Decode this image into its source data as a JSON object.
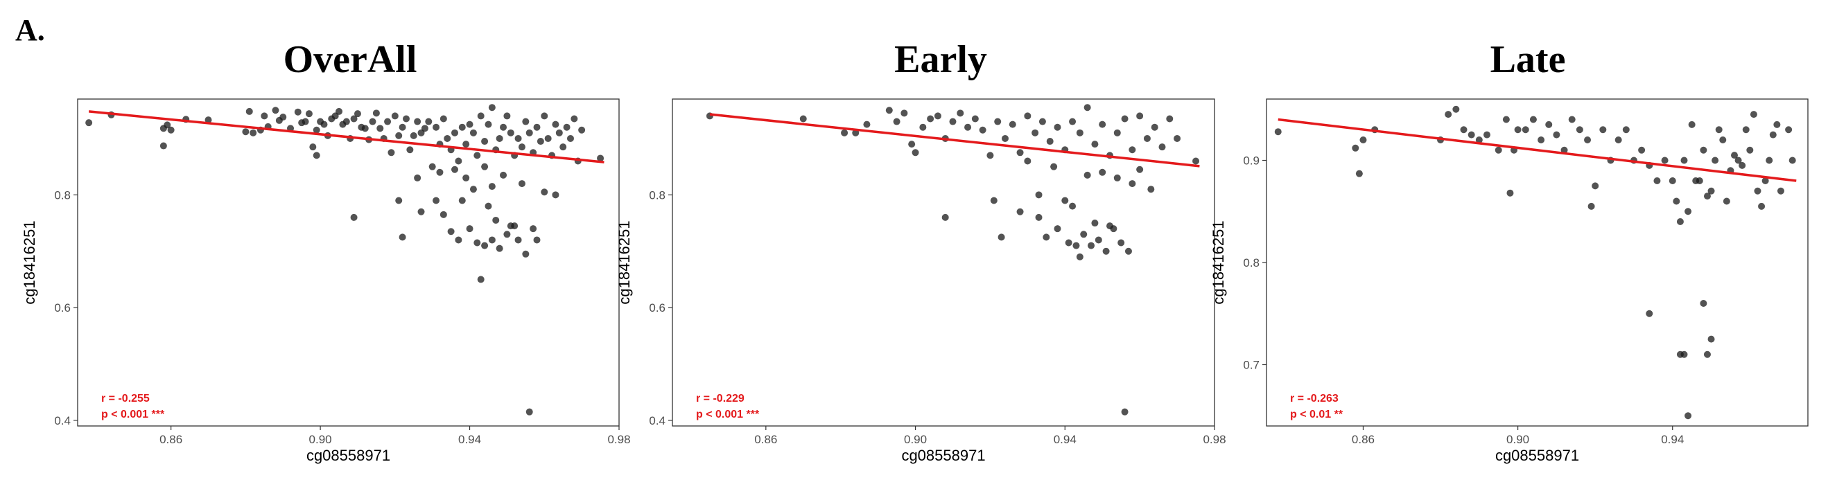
{
  "figure_label": "A.",
  "chart_data": [
    {
      "type": "scatter",
      "title": "OverAll",
      "xlabel": "cg08558971",
      "ylabel": "cg18416251",
      "xlim": [
        0.835,
        0.98
      ],
      "ylim": [
        0.39,
        0.97
      ],
      "xticks": [
        0.86,
        0.9,
        0.94,
        0.98
      ],
      "xtick_labels": [
        "0.86",
        "0.90",
        "0.94",
        "0.98"
      ],
      "yticks": [
        0.4,
        0.6,
        0.8
      ],
      "ytick_labels": [
        "0.4",
        "0.6",
        "0.8"
      ],
      "grid": false,
      "stat_r": "r = -0.255",
      "stat_p": "p < 0.001 ***",
      "fit_line": {
        "x": [
          0.838,
          0.976
        ],
        "y": [
          0.948,
          0.858
        ],
        "color": "#e41a1c"
      },
      "point_color": "#1a1a1a",
      "x": [
        0.838,
        0.844,
        0.858,
        0.858,
        0.859,
        0.86,
        0.864,
        0.87,
        0.88,
        0.881,
        0.882,
        0.884,
        0.885,
        0.886,
        0.888,
        0.889,
        0.89,
        0.892,
        0.894,
        0.895,
        0.896,
        0.897,
        0.898,
        0.899,
        0.899,
        0.9,
        0.901,
        0.902,
        0.903,
        0.904,
        0.905,
        0.906,
        0.907,
        0.908,
        0.909,
        0.91,
        0.911,
        0.912,
        0.913,
        0.914,
        0.915,
        0.916,
        0.917,
        0.918,
        0.919,
        0.92,
        0.921,
        0.922,
        0.923,
        0.924,
        0.925,
        0.926,
        0.927,
        0.928,
        0.929,
        0.93,
        0.931,
        0.932,
        0.933,
        0.934,
        0.935,
        0.936,
        0.937,
        0.938,
        0.939,
        0.94,
        0.941,
        0.942,
        0.943,
        0.944,
        0.945,
        0.946,
        0.947,
        0.948,
        0.949,
        0.95,
        0.951,
        0.952,
        0.953,
        0.954,
        0.955,
        0.956,
        0.957,
        0.958,
        0.959,
        0.96,
        0.961,
        0.962,
        0.963,
        0.964,
        0.965,
        0.966,
        0.967,
        0.968,
        0.969,
        0.97,
        0.975,
        0.909,
        0.921,
        0.922,
        0.927,
        0.933,
        0.935,
        0.937,
        0.94,
        0.942,
        0.944,
        0.946,
        0.948,
        0.95,
        0.953,
        0.955,
        0.957,
        0.943,
        0.956,
        0.945,
        0.931,
        0.938,
        0.952,
        0.963,
        0.941,
        0.947,
        0.951,
        0.958,
        0.944,
        0.949,
        0.954,
        0.96,
        0.939,
        0.946,
        0.932,
        0.936,
        0.926
      ],
      "y": [
        0.928,
        0.942,
        0.887,
        0.918,
        0.924,
        0.915,
        0.934,
        0.933,
        0.912,
        0.948,
        0.91,
        0.915,
        0.94,
        0.921,
        0.95,
        0.932,
        0.938,
        0.918,
        0.947,
        0.928,
        0.93,
        0.944,
        0.885,
        0.87,
        0.915,
        0.93,
        0.925,
        0.905,
        0.935,
        0.94,
        0.948,
        0.925,
        0.93,
        0.9,
        0.935,
        0.944,
        0.92,
        0.918,
        0.898,
        0.93,
        0.945,
        0.918,
        0.9,
        0.93,
        0.875,
        0.94,
        0.905,
        0.92,
        0.935,
        0.88,
        0.905,
        0.93,
        0.91,
        0.918,
        0.93,
        0.85,
        0.92,
        0.89,
        0.935,
        0.9,
        0.88,
        0.91,
        0.86,
        0.92,
        0.89,
        0.925,
        0.91,
        0.87,
        0.94,
        0.895,
        0.925,
        0.955,
        0.88,
        0.9,
        0.92,
        0.94,
        0.91,
        0.87,
        0.9,
        0.885,
        0.93,
        0.91,
        0.875,
        0.92,
        0.895,
        0.94,
        0.9,
        0.87,
        0.925,
        0.91,
        0.885,
        0.92,
        0.9,
        0.935,
        0.86,
        0.915,
        0.865,
        0.76,
        0.79,
        0.725,
        0.77,
        0.765,
        0.735,
        0.72,
        0.74,
        0.715,
        0.71,
        0.72,
        0.705,
        0.73,
        0.72,
        0.695,
        0.74,
        0.65,
        0.415,
        0.78,
        0.79,
        0.79,
        0.745,
        0.8,
        0.81,
        0.755,
        0.745,
        0.72,
        0.85,
        0.835,
        0.82,
        0.805,
        0.83,
        0.815,
        0.84,
        0.845,
        0.83
      ]
    },
    {
      "type": "scatter",
      "title": "Early",
      "xlabel": "cg08558971",
      "ylabel": "cg18416251",
      "xlim": [
        0.835,
        0.98
      ],
      "ylim": [
        0.39,
        0.97
      ],
      "xticks": [
        0.86,
        0.9,
        0.94,
        0.98
      ],
      "xtick_labels": [
        "0.86",
        "0.90",
        "0.94",
        "0.98"
      ],
      "yticks": [
        0.4,
        0.6,
        0.8
      ],
      "ytick_labels": [
        "0.4",
        "0.6",
        "0.8"
      ],
      "grid": false,
      "stat_r": "r = -0.229",
      "stat_p": "p < 0.001 ***",
      "fit_line": {
        "x": [
          0.845,
          0.976
        ],
        "y": [
          0.943,
          0.851
        ],
        "color": "#e41a1c"
      },
      "point_color": "#1a1a1a",
      "x": [
        0.845,
        0.87,
        0.881,
        0.884,
        0.887,
        0.893,
        0.895,
        0.897,
        0.899,
        0.9,
        0.902,
        0.904,
        0.906,
        0.908,
        0.91,
        0.912,
        0.914,
        0.916,
        0.918,
        0.92,
        0.922,
        0.924,
        0.926,
        0.928,
        0.93,
        0.932,
        0.934,
        0.936,
        0.938,
        0.94,
        0.942,
        0.944,
        0.946,
        0.948,
        0.95,
        0.952,
        0.954,
        0.956,
        0.958,
        0.96,
        0.962,
        0.964,
        0.966,
        0.968,
        0.97,
        0.975,
        0.908,
        0.921,
        0.923,
        0.928,
        0.933,
        0.935,
        0.938,
        0.941,
        0.943,
        0.945,
        0.947,
        0.949,
        0.951,
        0.953,
        0.955,
        0.957,
        0.944,
        0.956,
        0.948,
        0.933,
        0.94,
        0.952,
        0.963,
        0.942,
        0.95,
        0.958,
        0.946,
        0.954,
        0.96,
        0.937,
        0.93
      ],
      "y": [
        0.94,
        0.935,
        0.91,
        0.91,
        0.925,
        0.95,
        0.93,
        0.945,
        0.89,
        0.875,
        0.92,
        0.935,
        0.94,
        0.9,
        0.93,
        0.945,
        0.92,
        0.935,
        0.915,
        0.87,
        0.93,
        0.9,
        0.925,
        0.875,
        0.94,
        0.91,
        0.93,
        0.895,
        0.92,
        0.88,
        0.93,
        0.91,
        0.955,
        0.89,
        0.925,
        0.87,
        0.91,
        0.935,
        0.88,
        0.94,
        0.9,
        0.92,
        0.885,
        0.935,
        0.9,
        0.86,
        0.76,
        0.79,
        0.725,
        0.77,
        0.76,
        0.725,
        0.74,
        0.715,
        0.71,
        0.73,
        0.71,
        0.72,
        0.7,
        0.74,
        0.715,
        0.7,
        0.69,
        0.415,
        0.75,
        0.8,
        0.79,
        0.745,
        0.81,
        0.78,
        0.84,
        0.82,
        0.835,
        0.83,
        0.845,
        0.85,
        0.86
      ]
    },
    {
      "type": "scatter",
      "title": "Late",
      "xlabel": "cg08558971",
      "ylabel": "cg18416251",
      "xlim": [
        0.835,
        0.975
      ],
      "ylim": [
        0.64,
        0.96
      ],
      "xticks": [
        0.86,
        0.9,
        0.94
      ],
      "xtick_labels": [
        "0.86",
        "0.90",
        "0.94"
      ],
      "yticks": [
        0.7,
        0.8,
        0.9
      ],
      "ytick_labels": [
        "0.7",
        "0.8",
        "0.9"
      ],
      "grid": false,
      "stat_r": "r = -0.263",
      "stat_p": "p < 0.01 **",
      "fit_line": {
        "x": [
          0.838,
          0.972
        ],
        "y": [
          0.94,
          0.88
        ],
        "color": "#e41a1c"
      },
      "point_color": "#1a1a1a",
      "x": [
        0.838,
        0.858,
        0.859,
        0.86,
        0.863,
        0.88,
        0.882,
        0.884,
        0.886,
        0.888,
        0.89,
        0.892,
        0.895,
        0.897,
        0.898,
        0.899,
        0.9,
        0.902,
        0.904,
        0.906,
        0.908,
        0.91,
        0.912,
        0.914,
        0.916,
        0.918,
        0.919,
        0.92,
        0.922,
        0.924,
        0.926,
        0.928,
        0.93,
        0.932,
        0.934,
        0.936,
        0.938,
        0.94,
        0.941,
        0.942,
        0.943,
        0.944,
        0.945,
        0.946,
        0.947,
        0.948,
        0.949,
        0.95,
        0.951,
        0.952,
        0.953,
        0.954,
        0.955,
        0.956,
        0.957,
        0.958,
        0.959,
        0.96,
        0.961,
        0.962,
        0.963,
        0.964,
        0.965,
        0.966,
        0.967,
        0.968,
        0.97,
        0.971,
        0.934,
        0.942,
        0.944,
        0.949,
        0.95,
        0.948,
        0.943
      ],
      "y": [
        0.928,
        0.912,
        0.887,
        0.92,
        0.93,
        0.92,
        0.945,
        0.95,
        0.93,
        0.925,
        0.92,
        0.925,
        0.91,
        0.94,
        0.868,
        0.91,
        0.93,
        0.93,
        0.94,
        0.92,
        0.935,
        0.925,
        0.91,
        0.94,
        0.93,
        0.92,
        0.855,
        0.875,
        0.93,
        0.9,
        0.92,
        0.93,
        0.9,
        0.91,
        0.895,
        0.88,
        0.9,
        0.88,
        0.86,
        0.84,
        0.9,
        0.85,
        0.935,
        0.88,
        0.88,
        0.91,
        0.865,
        0.87,
        0.9,
        0.93,
        0.92,
        0.86,
        0.89,
        0.905,
        0.9,
        0.895,
        0.93,
        0.91,
        0.945,
        0.87,
        0.855,
        0.88,
        0.9,
        0.925,
        0.935,
        0.87,
        0.93,
        0.9,
        0.75,
        0.71,
        0.65,
        0.71,
        0.725,
        0.76,
        0.71
      ]
    }
  ]
}
